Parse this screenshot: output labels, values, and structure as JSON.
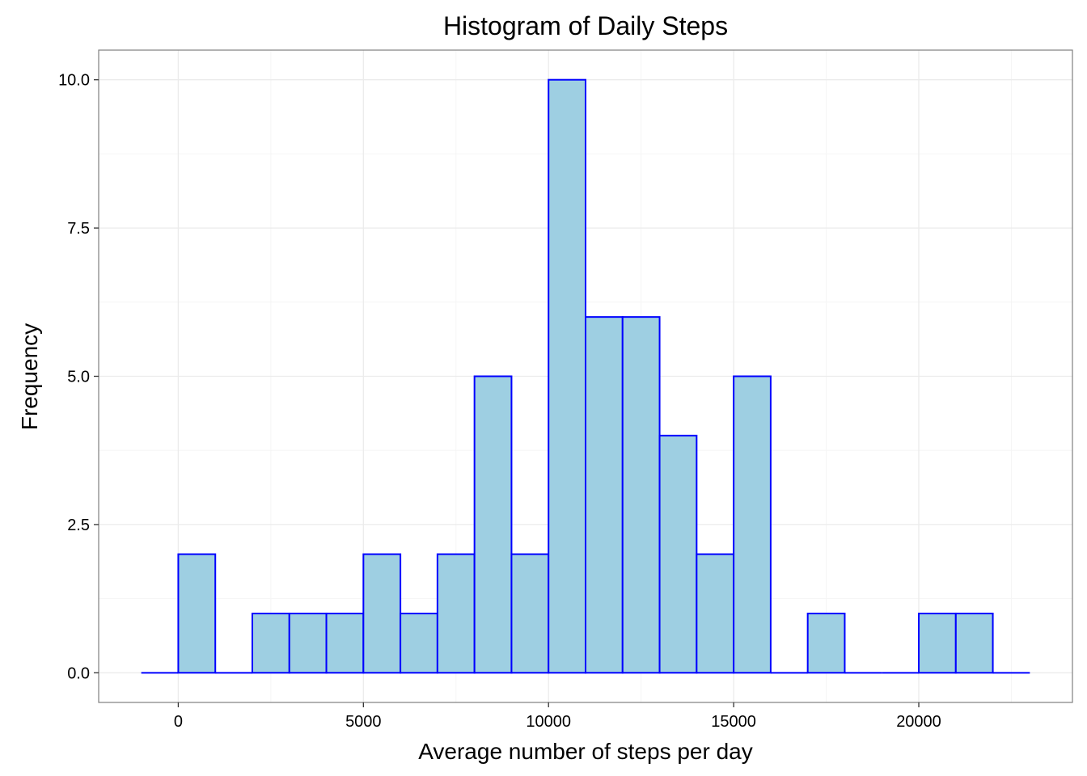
{
  "chart_data": {
    "type": "bar",
    "title": "Histogram of Daily Steps",
    "xlabel": "Average number of steps per day",
    "ylabel": "Frequency",
    "bin_width": 1000,
    "bins": [
      {
        "start": -1000,
        "end": 0,
        "count": 0
      },
      {
        "start": 0,
        "end": 1000,
        "count": 2
      },
      {
        "start": 1000,
        "end": 2000,
        "count": 0
      },
      {
        "start": 2000,
        "end": 3000,
        "count": 1
      },
      {
        "start": 3000,
        "end": 4000,
        "count": 1
      },
      {
        "start": 4000,
        "end": 5000,
        "count": 1
      },
      {
        "start": 5000,
        "end": 6000,
        "count": 2
      },
      {
        "start": 6000,
        "end": 7000,
        "count": 1
      },
      {
        "start": 7000,
        "end": 8000,
        "count": 2
      },
      {
        "start": 8000,
        "end": 9000,
        "count": 5
      },
      {
        "start": 9000,
        "end": 10000,
        "count": 2
      },
      {
        "start": 10000,
        "end": 11000,
        "count": 10
      },
      {
        "start": 11000,
        "end": 12000,
        "count": 6
      },
      {
        "start": 12000,
        "end": 13000,
        "count": 6
      },
      {
        "start": 13000,
        "end": 14000,
        "count": 4
      },
      {
        "start": 14000,
        "end": 15000,
        "count": 2
      },
      {
        "start": 15000,
        "end": 16000,
        "count": 5
      },
      {
        "start": 16000,
        "end": 17000,
        "count": 0
      },
      {
        "start": 17000,
        "end": 18000,
        "count": 1
      },
      {
        "start": 18000,
        "end": 19000,
        "count": 0
      },
      {
        "start": 19000,
        "end": 20000,
        "count": 0
      },
      {
        "start": 20000,
        "end": 21000,
        "count": 1
      },
      {
        "start": 21000,
        "end": 22000,
        "count": 1
      },
      {
        "start": 22000,
        "end": 23000,
        "count": 0
      }
    ],
    "xlim": [
      -2150,
      24150
    ],
    "ylim": [
      -0.5,
      10.5
    ],
    "x_ticks": [
      0,
      5000,
      10000,
      15000,
      20000
    ],
    "x_tick_labels": [
      "0",
      "5000",
      "10000",
      "15000",
      "20000"
    ],
    "y_ticks": [
      0,
      2.5,
      5,
      7.5,
      10
    ],
    "y_tick_labels": [
      "0.0",
      "2.5",
      "5.0",
      "7.5",
      "10.0"
    ],
    "grid": true,
    "legend": "none",
    "colors": {
      "bar_fill": "#9ecfe2",
      "bar_outline": "#0000ff",
      "panel_border": "#7f7f7f",
      "grid_major": "#ebebeb",
      "grid_minor": "#f5f5f5",
      "tick_color": "#333333"
    }
  }
}
